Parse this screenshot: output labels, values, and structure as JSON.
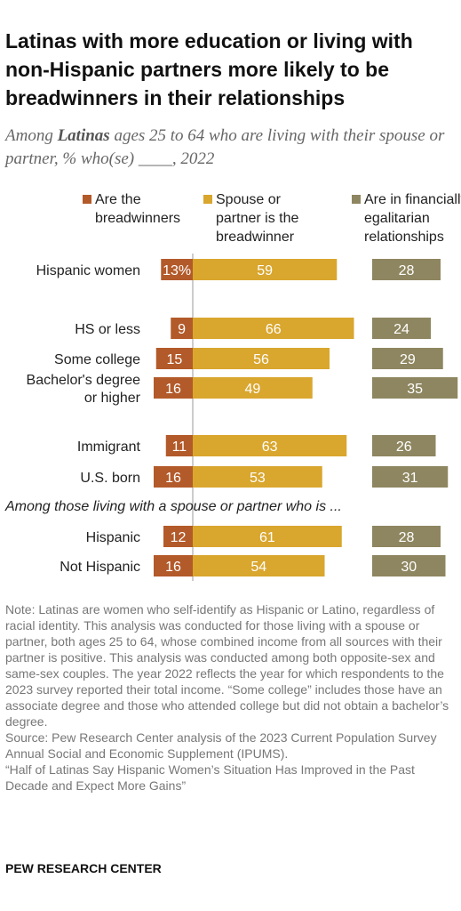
{
  "title": "Latinas with more education or living with non-Hispanic partners more likely to be breadwinners in their relationships",
  "subtitle": {
    "prefix": "Among ",
    "emph": "Latinas",
    "suffix": " ages 25 to 64 who are living with their spouse or partner, % who(se) ____, 2022"
  },
  "chart_data": {
    "type": "bar",
    "legend": [
      {
        "lines": [
          "Are the",
          "breadwinners"
        ],
        "color": "#b35a2a"
      },
      {
        "lines": [
          "Spouse or",
          "partner is the",
          "breadwinner"
        ],
        "color": "#d9a62e"
      },
      {
        "lines": [
          "Are in financially",
          "egalitarian",
          "relationships"
        ],
        "color": "#8e8660"
      }
    ],
    "categories": [
      {
        "label": [
          "Hispanic women"
        ],
        "values": [
          13,
          59,
          28
        ],
        "labels": [
          "13%",
          "59",
          "28"
        ]
      },
      {
        "label": [
          "HS or less"
        ],
        "values": [
          9,
          66,
          24
        ],
        "labels": [
          "9",
          "66",
          "24"
        ]
      },
      {
        "label": [
          "Some college"
        ],
        "values": [
          15,
          56,
          29
        ],
        "labels": [
          "15",
          "56",
          "29"
        ]
      },
      {
        "label": [
          "Bachelor's degree",
          "or higher"
        ],
        "values": [
          16,
          49,
          35
        ],
        "labels": [
          "16",
          "49",
          "35"
        ]
      },
      {
        "label": [
          "Immigrant"
        ],
        "values": [
          11,
          63,
          26
        ],
        "labels": [
          "11",
          "63",
          "26"
        ]
      },
      {
        "label": [
          "U.S. born"
        ],
        "values": [
          16,
          53,
          31
        ],
        "labels": [
          "16",
          "53",
          "31"
        ]
      },
      {
        "label": [
          "Hispanic"
        ],
        "values": [
          12,
          61,
          28
        ],
        "labels": [
          "12",
          "61",
          "28"
        ]
      },
      {
        "label": [
          "Not Hispanic"
        ],
        "values": [
          16,
          54,
          30
        ],
        "labels": [
          "16",
          "54",
          "30"
        ]
      }
    ],
    "section_label": "Among those living with a spouse or partner who is ..."
  },
  "note_lines": [
    "Note: Latinas are women who self-identify as Hispanic or Latino, regardless of racial identity. This analysis was conducted for those living with a spouse or partner, both ages 25 to 64, whose combined income from all sources with their partner is positive. This analysis was conducted among both opposite-sex and same-sex couples. The year 2022 reflects the year for which respondents to the 2023 survey reported their total income. “Some college” includes those have an associate degree and those who attended college but did not obtain a bachelor’s degree.",
    "Source: Pew Research Center analysis of the 2023 Current Population Survey Annual Social and Economic Supplement (IPUMS).",
    "“Half of Latinas Say Hispanic Women’s Situation Has Improved in the Past Decade and Expect More Gains”"
  ],
  "source_brand": "PEW RESEARCH CENTER"
}
